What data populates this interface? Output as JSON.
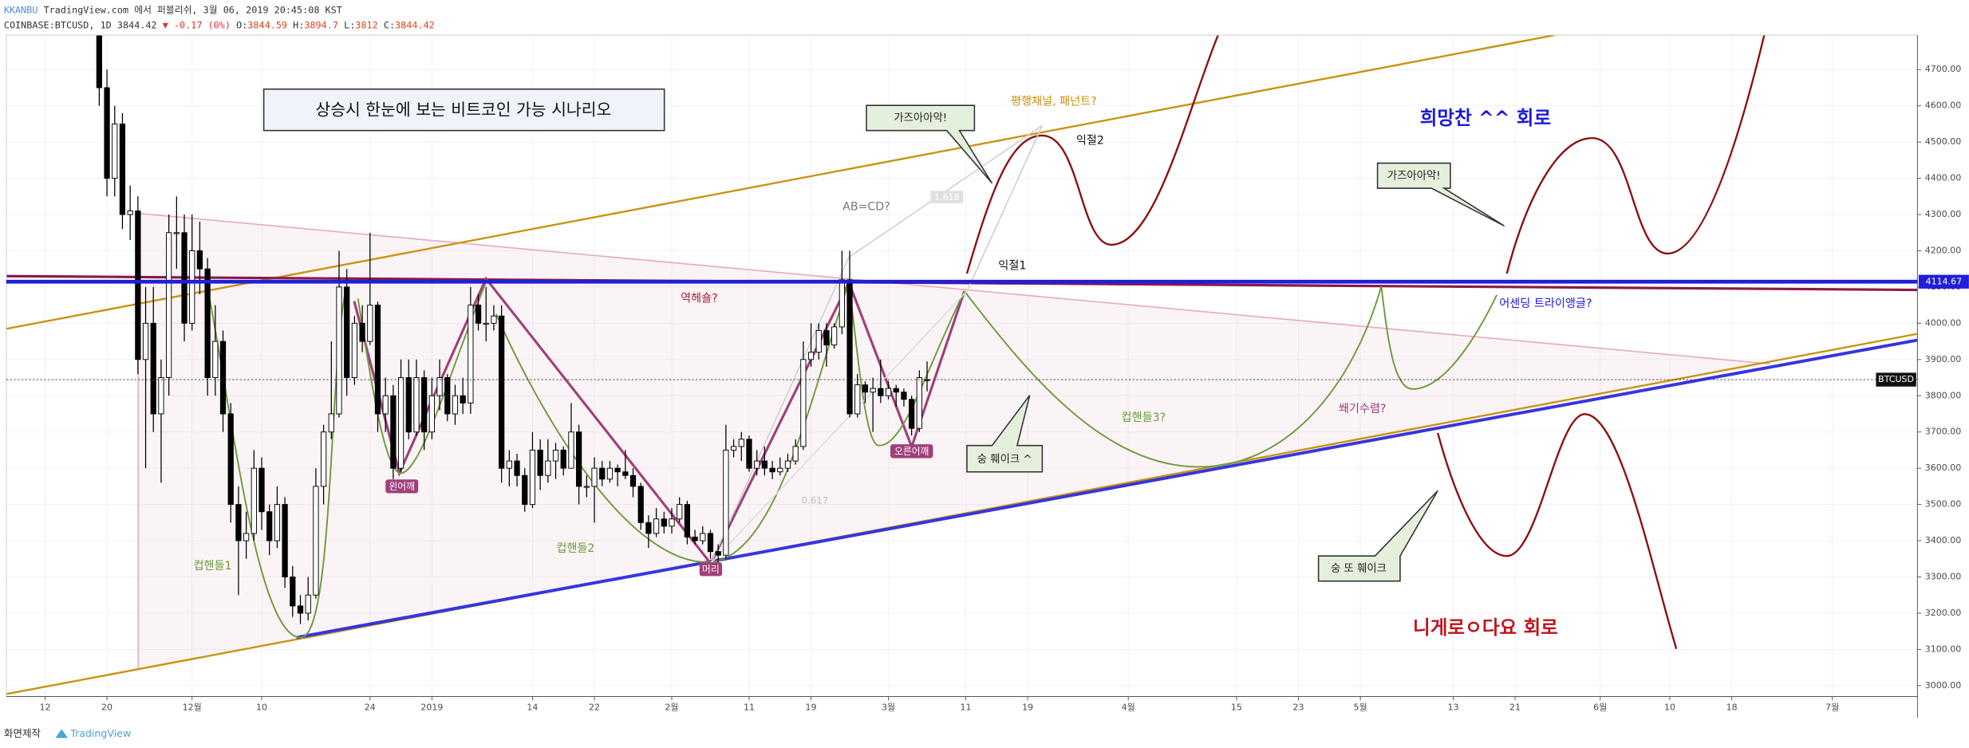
{
  "header": {
    "author": "KKANBU",
    "published": "TradingView.com 에서 퍼블리쉬, 3월 06, 2019 20:45:08 KST",
    "symbol": "COINBASE:BTCUSD, 1D",
    "arrow": "▼",
    "change": "-0.17 (0%)",
    "o_label": "O:",
    "h_label": "H:",
    "l_label": "L:",
    "c_label": "C:"
  },
  "footer": {
    "credit": "화면제작",
    "brand": "TradingView"
  },
  "annotations": [
    "상승시 한눈에 보는 비트코인 가능 시나리오",
    "평행채널, 패넌트?",
    "가즈아아악!",
    "익절2",
    "AB=CD?",
    "1.618",
    "익절1",
    "역헤숄?",
    "희망찬 ^^ 회로",
    "가즈아아악!",
    "어센딩 트라이앵글?",
    "컵핸들3?",
    "쐐기수렴?",
    "숭 훼이크 ^",
    "왼어깨",
    "오른어깨",
    "머리",
    "0.617",
    "컵핸들1",
    "컵핸들2",
    "숭 또 훼이크",
    "니게로ㅇ다요 회로"
  ],
  "chart_data": {
    "type": "candlestick",
    "up_color": "#ffffff",
    "down_color": "#000000",
    "wick_color": "#000000",
    "grid": true,
    "last_label": "BTCUSD",
    "hline": {
      "value": 4114.67,
      "color": "#1f1fd8"
    },
    "x": [
      "2018-11-19",
      "2018-11-20",
      "2018-11-21",
      "2018-11-22",
      "2018-11-23",
      "2018-11-24",
      "2018-11-25",
      "2018-11-26",
      "2018-11-27",
      "2018-11-28",
      "2018-11-29",
      "2018-11-30",
      "2018-12-01",
      "2018-12-02",
      "2018-12-03",
      "2018-12-04",
      "2018-12-05",
      "2018-12-06",
      "2018-12-07",
      "2018-12-08",
      "2018-12-09",
      "2018-12-10",
      "2018-12-11",
      "2018-12-12",
      "2018-12-13",
      "2018-12-14",
      "2018-12-15",
      "2018-12-16",
      "2018-12-17",
      "2018-12-18",
      "2018-12-19",
      "2018-12-20",
      "2018-12-21",
      "2018-12-22",
      "2018-12-23",
      "2018-12-24",
      "2018-12-25",
      "2018-12-26",
      "2018-12-27",
      "2018-12-28",
      "2018-12-29",
      "2018-12-30",
      "2018-12-31",
      "2019-01-01",
      "2019-01-02",
      "2019-01-03",
      "2019-01-04",
      "2019-01-05",
      "2019-01-06",
      "2019-01-07",
      "2019-01-08",
      "2019-01-09",
      "2019-01-10",
      "2019-01-11",
      "2019-01-12",
      "2019-01-13",
      "2019-01-14",
      "2019-01-15",
      "2019-01-16",
      "2019-01-17",
      "2019-01-18",
      "2019-01-19",
      "2019-01-20",
      "2019-01-21",
      "2019-01-22",
      "2019-01-23",
      "2019-01-24",
      "2019-01-25",
      "2019-01-26",
      "2019-01-27",
      "2019-01-28",
      "2019-01-29",
      "2019-01-30",
      "2019-01-31",
      "2019-02-01",
      "2019-02-02",
      "2019-02-03",
      "2019-02-04",
      "2019-02-05",
      "2019-02-06",
      "2019-02-07",
      "2019-02-08",
      "2019-02-09",
      "2019-02-10",
      "2019-02-11",
      "2019-02-12",
      "2019-02-13",
      "2019-02-14",
      "2019-02-15",
      "2019-02-16",
      "2019-02-17",
      "2019-02-18",
      "2019-02-19",
      "2019-02-20",
      "2019-02-21",
      "2019-02-22",
      "2019-02-23",
      "2019-02-24",
      "2019-02-25",
      "2019-02-26",
      "2019-02-27",
      "2019-02-28",
      "2019-03-01",
      "2019-03-02",
      "2019-03-03",
      "2019-03-04",
      "2019-03-05",
      "2019-03-06"
    ],
    "open": [
      4800,
      4650,
      4400,
      4550,
      4300,
      4310,
      3900,
      4000,
      3750,
      3850,
      4250,
      4250,
      4000,
      4200,
      4150,
      3850,
      3950,
      3750,
      3500,
      3400,
      3420,
      3600,
      3480,
      3400,
      3500,
      3300,
      3220,
      3200,
      3250,
      3550,
      3700,
      3750,
      4100,
      3850,
      4000,
      3950,
      4050,
      3750,
      3800,
      3600,
      3850,
      3700,
      3850,
      3700,
      3800,
      3850,
      3750,
      3800,
      3780,
      4050,
      4000,
      4000,
      4020,
      3600,
      3620,
      3580,
      3500,
      3650,
      3580,
      3620,
      3650,
      3600,
      3700,
      3550,
      3550,
      3600,
      3570,
      3600,
      3590,
      3580,
      3550,
      3450,
      3420,
      3460,
      3440,
      3460,
      3500,
      3410,
      3400,
      3420,
      3370,
      3360,
      3650,
      3660,
      3680,
      3600,
      3620,
      3600,
      3590,
      3600,
      3620,
      3660,
      3900,
      3920,
      3980,
      3940,
      3990,
      4120,
      3750,
      3830,
      3810,
      3820,
      3800,
      3820,
      3810,
      3790,
      3710,
      3844.59
    ],
    "high": [
      4850,
      4700,
      4600,
      4580,
      4380,
      4350,
      4100,
      4100,
      3900,
      4300,
      4350,
      4300,
      4300,
      4280,
      4180,
      4050,
      3980,
      3780,
      3550,
      3480,
      3650,
      3630,
      3500,
      3550,
      3520,
      3330,
      3250,
      3300,
      3600,
      3720,
      3950,
      4200,
      4150,
      4020,
      4050,
      4250,
      4060,
      3850,
      3830,
      3900,
      3900,
      3900,
      3870,
      3850,
      3900,
      3860,
      3830,
      3850,
      4100,
      4080,
      4100,
      4050,
      4050,
      3650,
      3640,
      3600,
      3700,
      3680,
      3680,
      3670,
      3660,
      3780,
      3720,
      3580,
      3630,
      3620,
      3620,
      3610,
      3650,
      3600,
      3560,
      3470,
      3490,
      3480,
      3490,
      3520,
      3510,
      3430,
      3440,
      3430,
      3390,
      3720,
      3680,
      3700,
      3690,
      3650,
      3660,
      3620,
      3630,
      3640,
      3680,
      3950,
      4000,
      4000,
      4000,
      4000,
      4200,
      4200,
      3860,
      3840,
      3850,
      3900,
      3840,
      3830,
      3820,
      3800,
      3870,
      3894.7
    ],
    "low": [
      4600,
      4350,
      4350,
      4260,
      4230,
      3860,
      3600,
      3700,
      3560,
      3800,
      4150,
      3950,
      3980,
      4080,
      3800,
      3800,
      3700,
      3450,
      3250,
      3350,
      3400,
      3430,
      3360,
      3380,
      3270,
      3190,
      3170,
      3180,
      3240,
      3500,
      3680,
      3740,
      3800,
      3830,
      3920,
      3940,
      3700,
      3700,
      3570,
      3590,
      3680,
      3690,
      3650,
      3680,
      3760,
      3730,
      3720,
      3750,
      3750,
      3980,
      3950,
      3980,
      3560,
      3550,
      3550,
      3480,
      3490,
      3540,
      3560,
      3570,
      3580,
      3600,
      3500,
      3520,
      3450,
      3550,
      3560,
      3550,
      3570,
      3520,
      3430,
      3380,
      3410,
      3420,
      3420,
      3450,
      3390,
      3390,
      3390,
      3350,
      3340,
      3350,
      3630,
      3620,
      3590,
      3580,
      3580,
      3570,
      3580,
      3590,
      3610,
      3650,
      3880,
      3900,
      3880,
      3930,
      3970,
      3740,
      3740,
      3780,
      3700,
      3780,
      3790,
      3770,
      3770,
      3690,
      3700,
      3812
    ],
    "close": [
      4650,
      4400,
      4550,
      4300,
      4310,
      3900,
      4000,
      3750,
      3850,
      4250,
      4250,
      4000,
      4200,
      4150,
      3850,
      3950,
      3750,
      3500,
      3400,
      3420,
      3600,
      3480,
      3400,
      3500,
      3300,
      3220,
      3200,
      3250,
      3550,
      3700,
      3750,
      4100,
      3850,
      4000,
      3950,
      4050,
      3750,
      3800,
      3600,
      3850,
      3700,
      3850,
      3700,
      3800,
      3850,
      3750,
      3800,
      3780,
      4050,
      4000,
      4000,
      4020,
      3600,
      3620,
      3580,
      3500,
      3650,
      3580,
      3620,
      3650,
      3600,
      3700,
      3550,
      3550,
      3600,
      3570,
      3600,
      3590,
      3580,
      3550,
      3450,
      3420,
      3460,
      3440,
      3460,
      3500,
      3410,
      3400,
      3420,
      3370,
      3360,
      3650,
      3660,
      3680,
      3600,
      3620,
      3600,
      3590,
      3600,
      3620,
      3660,
      3900,
      3920,
      3980,
      3940,
      3990,
      4120,
      3750,
      3830,
      3810,
      3820,
      3800,
      3820,
      3810,
      3790,
      3710,
      3850,
      3844.42
    ],
    "xlim": [
      "2018-11-07",
      "2019-07-12"
    ],
    "xticks": [
      {
        "value": "2018-11-12",
        "label": "12"
      },
      {
        "value": "2018-11-20",
        "label": "20"
      },
      {
        "value": "2018-12-01",
        "label": "12월"
      },
      {
        "value": "2018-12-10",
        "label": "10"
      },
      {
        "value": "2018-12-24",
        "label": "24"
      },
      {
        "value": "2019-01-01",
        "label": "2019"
      },
      {
        "value": "2019-01-14",
        "label": "14"
      },
      {
        "value": "2019-01-22",
        "label": "22"
      },
      {
        "value": "2019-02-01",
        "label": "2월"
      },
      {
        "value": "2019-02-11",
        "label": "11"
      },
      {
        "value": "2019-02-19",
        "label": "19"
      },
      {
        "value": "2019-03-01",
        "label": "3월"
      },
      {
        "value": "2019-03-11",
        "label": "11"
      },
      {
        "value": "2019-03-19",
        "label": "19"
      },
      {
        "value": "2019-04-01",
        "label": "4월"
      },
      {
        "value": "2019-04-15",
        "label": "15"
      },
      {
        "value": "2019-04-23",
        "label": "23"
      },
      {
        "value": "2019-05-01",
        "label": "5월"
      },
      {
        "value": "2019-05-13",
        "label": "13"
      },
      {
        "value": "2019-05-21",
        "label": "21"
      },
      {
        "value": "2019-06-01",
        "label": "6월"
      },
      {
        "value": "2019-06-10",
        "label": "10"
      },
      {
        "value": "2019-06-18",
        "label": "18"
      },
      {
        "value": "2019-07-01",
        "label": "7월"
      }
    ],
    "ylim": [
      2970,
      4795
    ],
    "yticks": [
      {
        "value": 3000,
        "label": "3000.00"
      },
      {
        "value": 3100,
        "label": "3100.00"
      },
      {
        "value": 3200,
        "label": "3200.00"
      },
      {
        "value": 3300,
        "label": "3300.00"
      },
      {
        "value": 3400,
        "label": "3400.00"
      },
      {
        "value": 3500,
        "label": "3500.00"
      },
      {
        "value": 3600,
        "label": "3600.00"
      },
      {
        "value": 3700,
        "label": "3700.00"
      },
      {
        "value": 3800,
        "label": "3800.00"
      },
      {
        "value": 3900,
        "label": "3900.00"
      },
      {
        "value": 4000,
        "label": "4000.00"
      },
      {
        "value": 4100,
        "label": "4100.00"
      },
      {
        "value": 4200,
        "label": "4200.00"
      },
      {
        "value": 4300,
        "label": "4300.00"
      },
      {
        "value": 4400,
        "label": "4400.00"
      },
      {
        "value": 4500,
        "label": "4500.00"
      },
      {
        "value": 4600,
        "label": "4600.00"
      },
      {
        "value": 4700,
        "label": "4700.00"
      }
    ]
  }
}
